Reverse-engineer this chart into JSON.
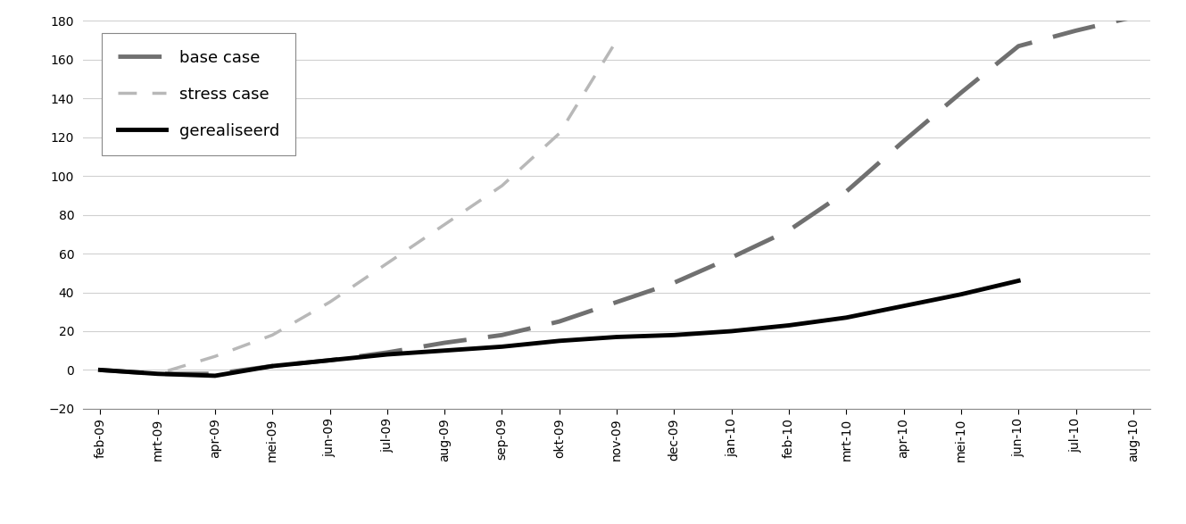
{
  "x_labels": [
    "feb-09",
    "mrt-09",
    "apr-09",
    "mei-09",
    "jun-09",
    "jul-09",
    "aug-09",
    "sep-09",
    "okt-09",
    "nov-09",
    "dec-09",
    "jan-10",
    "feb-10",
    "mrt-10",
    "apr-10",
    "mei-10",
    "jun-10",
    "jul-10",
    "aug-10"
  ],
  "base_case": [
    0,
    -2,
    -2,
    2,
    5,
    9,
    14,
    18,
    25,
    35,
    45,
    58,
    72,
    92,
    118,
    143,
    167,
    175,
    182
  ],
  "stress_case": [
    0,
    -2,
    7,
    18,
    35,
    55,
    75,
    95,
    122,
    170,
    null,
    null,
    null,
    null,
    null,
    null,
    null,
    null,
    null
  ],
  "gerealiseerd": [
    0,
    -2,
    -3,
    2,
    5,
    8,
    10,
    12,
    15,
    17,
    18,
    20,
    23,
    27,
    33,
    39,
    46,
    null,
    null
  ],
  "ylim": [
    -20,
    180
  ],
  "yticks": [
    -20,
    0,
    20,
    40,
    60,
    80,
    100,
    120,
    140,
    160,
    180
  ],
  "base_case_color": "#707070",
  "stress_case_color": "#b8b8b8",
  "gerealiseerd_color": "#000000",
  "legend_labels": [
    "base case",
    "stress case",
    "gerealiseerd"
  ],
  "legend_fontsize": 13,
  "background_color": "#ffffff",
  "grid_color": "#d0d0d0",
  "tick_fontsize": 10
}
